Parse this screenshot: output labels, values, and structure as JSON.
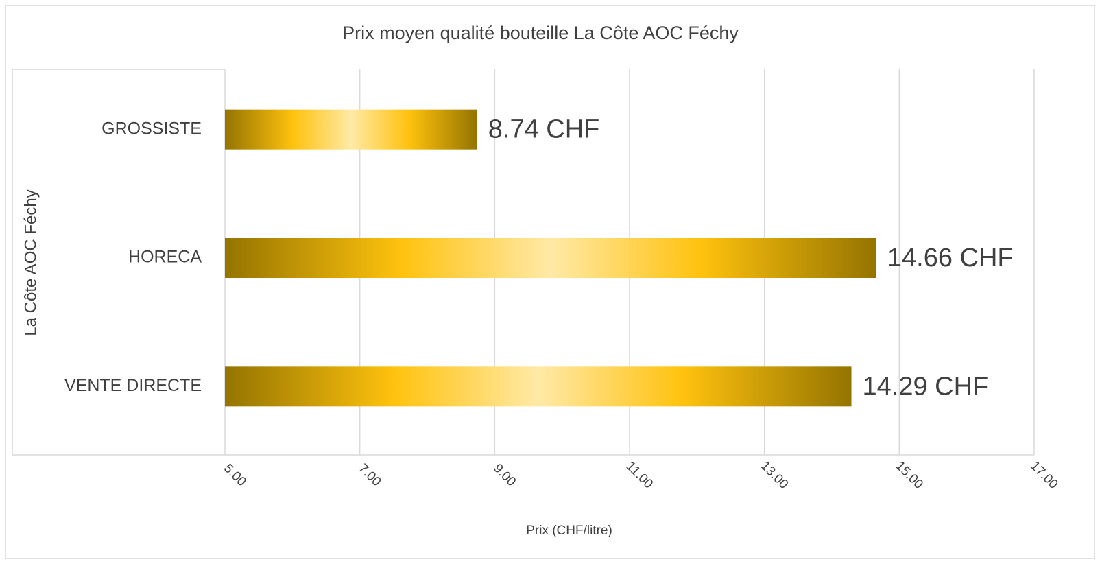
{
  "chart_data": {
    "type": "bar",
    "orientation": "horizontal",
    "title": "Prix moyen qualité bouteille La Côte AOC Féchy",
    "x_label": "Prix (CHF/litre)",
    "y_label": "La Côte AOC Féchy",
    "categories": [
      "GROSSISTE",
      "HORECA",
      "VENTE DIRECTE"
    ],
    "values": [
      8.74,
      14.66,
      14.29
    ],
    "value_labels": [
      "8.74 CHF",
      "14.66 CHF",
      "14.29 CHF"
    ],
    "color": "#ffc20e",
    "xlim": [
      5,
      17
    ],
    "xticks": [
      {
        "value": 5,
        "label": "5.00"
      },
      {
        "value": 7,
        "label": "7.00"
      },
      {
        "value": 9,
        "label": "9.00"
      },
      {
        "value": 11,
        "label": "11.00"
      },
      {
        "value": 13,
        "label": "13.00"
      },
      {
        "value": 15,
        "label": "15.00"
      },
      {
        "value": 17,
        "label": "17.00"
      }
    ],
    "grid": true
  }
}
